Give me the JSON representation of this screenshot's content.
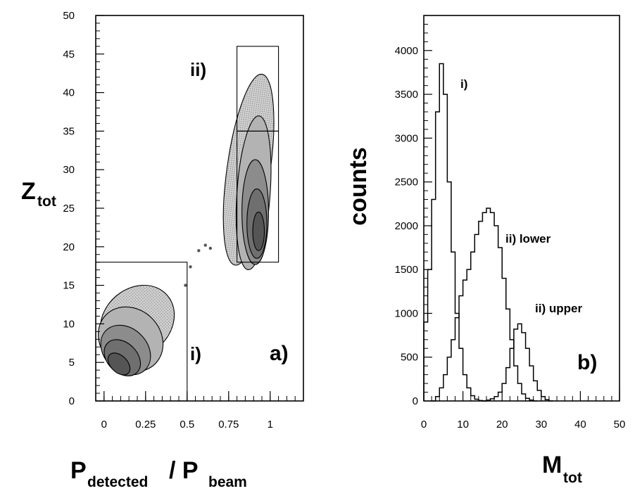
{
  "colors": {
    "ink": "#000000",
    "fill_light": "#d6d6d6",
    "fill_mid": "#b3b3b3",
    "fill_dark": "#8c8c8c",
    "paper": "#ffffff"
  },
  "chart_data": [
    {
      "type": "heatmap",
      "panel_label": "a)",
      "xlabel": {
        "main": "P",
        "sub1": "detected",
        "slash": "/ P",
        "sub2": "beam"
      },
      "ylabel": {
        "main": "Z",
        "sub": "tot"
      },
      "xlim": [
        -0.05,
        1.2
      ],
      "ylim": [
        0,
        50
      ],
      "xticks": [
        0,
        0.25,
        0.5,
        0.75,
        1
      ],
      "xtick_labels": [
        "0",
        "0.25",
        "0.5",
        "0.75",
        "1"
      ],
      "yticks": [
        0,
        5,
        10,
        15,
        20,
        25,
        30,
        35,
        40,
        45,
        50
      ],
      "ytick_labels": [
        "0",
        "5",
        "10",
        "15",
        "20",
        "25",
        "30",
        "35",
        "40",
        "45",
        "50"
      ],
      "grid": false,
      "regions": [
        {
          "label": "i)",
          "x": [
            -0.05,
            0.5
          ],
          "y": [
            0,
            18
          ]
        },
        {
          "label": "ii)",
          "x": [
            0.8,
            1.05
          ],
          "y": [
            18,
            35
          ]
        },
        {
          "label": "",
          "x": [
            0.8,
            1.05
          ],
          "y": [
            35,
            46
          ]
        }
      ],
      "clusters": [
        {
          "name": "i",
          "center": [
            0.12,
            6
          ],
          "density": "high near P=0.05–0.2, Z=2–8"
        },
        {
          "name": "ii",
          "center": [
            0.9,
            22
          ],
          "density": "high near P=0.85–0.95, Z=20–27"
        }
      ]
    },
    {
      "type": "line",
      "panel_label": "b)",
      "xlabel": {
        "main": "M",
        "sub": "tot"
      },
      "ylabel": "counts",
      "xlim": [
        0,
        50
      ],
      "ylim": [
        0,
        4400
      ],
      "xticks": [
        0,
        10,
        20,
        30,
        40,
        50
      ],
      "yticks": [
        0,
        500,
        1000,
        1500,
        2000,
        2500,
        3000,
        3500,
        4000
      ],
      "grid": false,
      "step": true,
      "series": [
        {
          "name": "i)",
          "x": [
            0,
            1,
            2,
            3,
            4,
            5,
            6,
            7,
            8,
            9,
            10,
            11,
            12,
            13,
            14,
            15
          ],
          "values": [
            900,
            1500,
            2300,
            3300,
            3850,
            3500,
            2500,
            1700,
            1000,
            600,
            300,
            150,
            60,
            20,
            5,
            0
          ]
        },
        {
          "name": "ii) lower",
          "x": [
            2,
            3,
            4,
            5,
            6,
            7,
            8,
            9,
            10,
            11,
            12,
            13,
            14,
            15,
            16,
            17,
            18,
            19,
            20,
            21,
            22,
            23,
            24,
            25,
            26,
            27,
            28
          ],
          "values": [
            0,
            50,
            150,
            300,
            500,
            700,
            950,
            1200,
            1380,
            1500,
            1700,
            1900,
            2050,
            2150,
            2200,
            2150,
            2000,
            1750,
            1400,
            1050,
            700,
            400,
            200,
            80,
            30,
            10,
            0
          ]
        },
        {
          "name": "ii) upper",
          "x": [
            15,
            16,
            17,
            18,
            19,
            20,
            21,
            22,
            23,
            24,
            25,
            26,
            27,
            28,
            29,
            30,
            31,
            32
          ],
          "values": [
            0,
            10,
            25,
            50,
            100,
            200,
            380,
            600,
            820,
            880,
            780,
            600,
            400,
            230,
            120,
            50,
            15,
            0
          ]
        }
      ]
    }
  ]
}
